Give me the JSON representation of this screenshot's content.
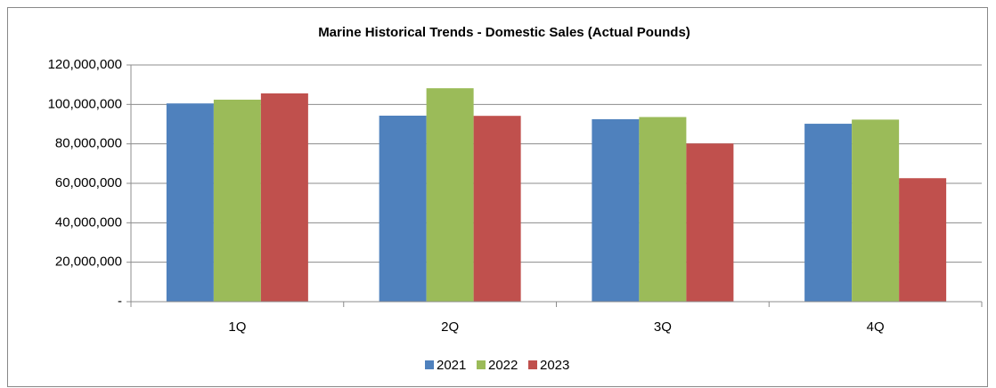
{
  "chart_data": {
    "type": "bar",
    "title": "Marine Historical Trends - Domestic Sales (Actual Pounds)",
    "categories": [
      "1Q",
      "2Q",
      "3Q",
      "4Q"
    ],
    "series": [
      {
        "name": "2021",
        "color": "#4f81bd",
        "values": [
          100500000,
          94300000,
          92500000,
          90200000
        ]
      },
      {
        "name": "2022",
        "color": "#9bbb59",
        "values": [
          102400000,
          108200000,
          93600000,
          92300000
        ]
      },
      {
        "name": "2023",
        "color": "#c0504d",
        "values": [
          105600000,
          94200000,
          80200000,
          62600000
        ]
      }
    ],
    "ylim": [
      0,
      120000000
    ],
    "yticks": [
      {
        "value": 0,
        "label": "-"
      },
      {
        "value": 20000000,
        "label": "20,000,000"
      },
      {
        "value": 40000000,
        "label": "40,000,000"
      },
      {
        "value": 60000000,
        "label": "60,000,000"
      },
      {
        "value": 80000000,
        "label": "80,000,000"
      },
      {
        "value": 100000000,
        "label": "100,000,000"
      },
      {
        "value": 120000000,
        "label": "120,000,000"
      }
    ],
    "grid": true,
    "legend": "bottom"
  }
}
